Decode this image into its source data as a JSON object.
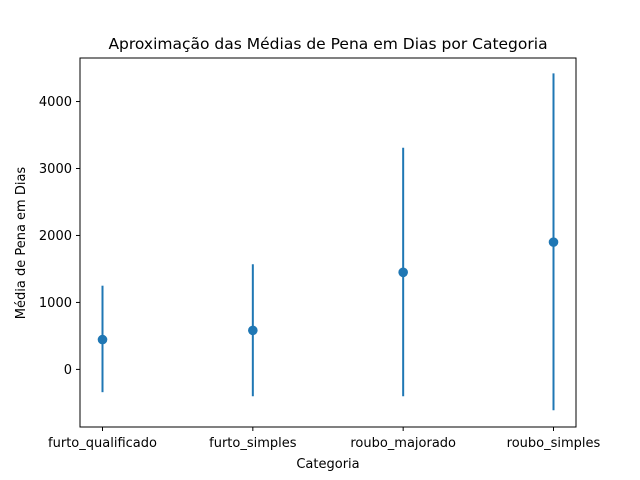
{
  "chart_data": {
    "type": "scatter",
    "title": "Aproximação das Médias de Pena em Dias por Categoria",
    "xlabel": "Categoria",
    "ylabel": "Média de Pena em Dias",
    "categories": [
      "furto_qualificado",
      "furto_simples",
      "roubo_majorado",
      "roubo_simples"
    ],
    "means": [
      445,
      583,
      1450,
      1900
    ],
    "error_low": [
      -340,
      -400,
      -400,
      -610
    ],
    "error_high": [
      1250,
      1570,
      3310,
      4420
    ],
    "ylim": [
      -860,
      4650
    ],
    "yticks": [
      0,
      1000,
      2000,
      3000,
      4000
    ],
    "ytick_labels": [
      "0",
      "1000",
      "2000",
      "3000",
      "4000"
    ],
    "grid": false,
    "legend": false,
    "color": "#1f77b4"
  }
}
